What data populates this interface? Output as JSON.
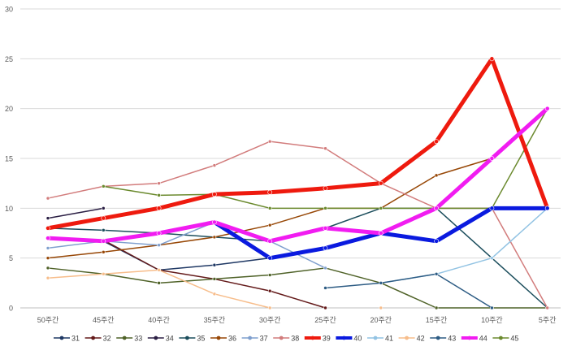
{
  "chart_data": {
    "type": "line",
    "title": "",
    "xlabel": "",
    "ylabel": "",
    "ylim": [
      0,
      30
    ],
    "yticks": [
      0,
      5,
      10,
      15,
      20,
      25,
      30
    ],
    "grid": "horizontal",
    "legend_position": "bottom",
    "categories": [
      "50주간",
      "45주간",
      "40주간",
      "35주간",
      "30주간",
      "25주간",
      "20주간",
      "15주간",
      "10주간",
      "5주간"
    ],
    "series": [
      {
        "name": "31",
        "color": "#1f3864",
        "width": 1.5,
        "values": [
          7,
          6.7,
          3.8,
          4.3,
          5,
          6,
          7.5,
          10,
          10,
          10
        ]
      },
      {
        "name": "32",
        "color": "#641a1a",
        "width": 1.5,
        "values": [
          7,
          6.8,
          3.8,
          2.9,
          1.7,
          0,
          null,
          null,
          null,
          null
        ]
      },
      {
        "name": "33",
        "color": "#4f6228",
        "width": 1.5,
        "values": [
          4,
          3.4,
          2.5,
          2.9,
          3.3,
          4,
          2.5,
          0,
          0,
          0
        ]
      },
      {
        "name": "34",
        "color": "#2b1f44",
        "width": 1.5,
        "values": [
          9,
          10,
          null,
          null,
          null,
          null,
          null,
          null,
          null,
          null
        ]
      },
      {
        "name": "35",
        "color": "#1b4d5c",
        "width": 1.5,
        "values": [
          8,
          7.8,
          7.5,
          7.1,
          6.7,
          8,
          10,
          10,
          5,
          0
        ]
      },
      {
        "name": "36",
        "color": "#974706",
        "width": 1.5,
        "values": [
          5,
          5.6,
          6.3,
          7.1,
          8.3,
          10,
          10,
          13.3,
          15,
          null
        ]
      },
      {
        "name": "37",
        "color": "#7f9fce",
        "width": 1.5,
        "values": [
          6,
          6.7,
          6.3,
          8.6,
          6.7,
          4,
          null,
          null,
          null,
          null
        ]
      },
      {
        "name": "38",
        "color": "#d27c7c",
        "width": 1.5,
        "values": [
          11,
          12.2,
          12.5,
          14.3,
          16.7,
          16,
          12.5,
          10,
          10,
          0
        ]
      },
      {
        "name": "39",
        "color": "#ee1a0e",
        "width": 5,
        "values": [
          8,
          9,
          10,
          11.4,
          11.6,
          12,
          12.5,
          16.7,
          25,
          10
        ]
      },
      {
        "name": "40",
        "color": "#0a1adf",
        "width": 5,
        "values": [
          null,
          null,
          null,
          8.6,
          5,
          6,
          7.5,
          6.7,
          10,
          10
        ]
      },
      {
        "name": "41",
        "color": "#92c3e3",
        "width": 1.5,
        "values": [
          null,
          null,
          null,
          null,
          null,
          null,
          2.5,
          3.4,
          5,
          10
        ]
      },
      {
        "name": "42",
        "color": "#f7bd8b",
        "width": 1.5,
        "values": [
          3,
          3.4,
          3.8,
          1.4,
          0,
          null,
          0,
          null,
          null,
          null
        ]
      },
      {
        "name": "43",
        "color": "#2d5c84",
        "width": 1.5,
        "values": [
          null,
          null,
          null,
          null,
          null,
          2,
          2.5,
          3.4,
          0,
          null
        ]
      },
      {
        "name": "44",
        "color": "#f11cf1",
        "width": 5,
        "values": [
          7,
          6.7,
          7.5,
          8.6,
          6.7,
          8,
          7.5,
          10,
          15,
          20
        ]
      },
      {
        "name": "45",
        "color": "#6b8a2e",
        "width": 1.5,
        "values": [
          null,
          12.2,
          11.3,
          11.4,
          10,
          10,
          10,
          10,
          10,
          20
        ]
      }
    ]
  }
}
